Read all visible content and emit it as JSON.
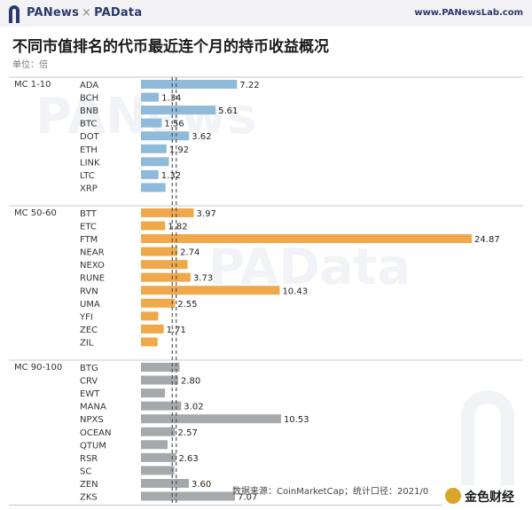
{
  "header": {
    "brand_left": "PANews",
    "brand_sep": "×",
    "brand_right": "PAData",
    "site": "www.PANewsLab.com"
  },
  "title": "不同市值排名的代币最近连个月的持币收益概况",
  "unit": "单位：倍",
  "footer": "数据来源：CoinMarketCap；统计口径：2021/0",
  "watermarks": {
    "pa_news": "PANews",
    "pa_data": "PAData",
    "corner": "金色财经"
  },
  "colors": {
    "group1": "#8fbad9",
    "group2": "#f0a94a",
    "group3": "#a6a9ab",
    "separator": "#c8c8c8"
  },
  "chart_data": {
    "type": "bar",
    "orientation": "horizontal",
    "title": "不同市值排名的代币最近连个月的持币收益概况",
    "unit": "单位：倍",
    "groups": [
      {
        "name": "MC 1-10",
        "color": "#8fbad9",
        "tokens": [
          {
            "name": "ADA",
            "value": 7.22,
            "label": "7.22"
          },
          {
            "name": "BCH",
            "value": 1.34,
            "label": "1.34"
          },
          {
            "name": "BNB",
            "value": 5.61,
            "label": "5.61"
          },
          {
            "name": "BTC",
            "value": 1.56,
            "label": "1.56"
          },
          {
            "name": "DOT",
            "value": 3.62,
            "label": "3.62"
          },
          {
            "name": "ETH",
            "value": 1.92,
            "label": "1.92"
          },
          {
            "name": "LINK",
            "value": 2.1,
            "label": ""
          },
          {
            "name": "LTC",
            "value": 1.32,
            "label": "1.32"
          },
          {
            "name": "XRP",
            "value": 1.85,
            "label": ""
          }
        ]
      },
      {
        "name": "MC 50-60",
        "color": "#f0a94a",
        "tokens": [
          {
            "name": "BTT",
            "value": 3.97,
            "label": "3.97"
          },
          {
            "name": "ETC",
            "value": 1.82,
            "label": "1.82"
          },
          {
            "name": "FTM",
            "value": 24.87,
            "label": "24.87"
          },
          {
            "name": "NEAR",
            "value": 2.74,
            "label": "2.74"
          },
          {
            "name": "NEXO",
            "value": 3.5,
            "label": ""
          },
          {
            "name": "RUNE",
            "value": 3.73,
            "label": "3.73"
          },
          {
            "name": "RVN",
            "value": 10.43,
            "label": "10.43"
          },
          {
            "name": "UMA",
            "value": 2.55,
            "label": "2.55"
          },
          {
            "name": "YFI",
            "value": 1.3,
            "label": ""
          },
          {
            "name": "ZEC",
            "value": 1.71,
            "label": "1.71"
          },
          {
            "name": "ZIL",
            "value": 1.25,
            "label": ""
          }
        ]
      },
      {
        "name": "MC 90-100",
        "color": "#a6a9ab",
        "tokens": [
          {
            "name": "BTG",
            "value": 2.9,
            "label": ""
          },
          {
            "name": "CRV",
            "value": 2.8,
            "label": "2.80"
          },
          {
            "name": "EWT",
            "value": 1.8,
            "label": ""
          },
          {
            "name": "MANA",
            "value": 3.02,
            "label": "3.02"
          },
          {
            "name": "NPXS",
            "value": 10.53,
            "label": "10.53"
          },
          {
            "name": "OCEAN",
            "value": 2.57,
            "label": "2.57"
          },
          {
            "name": "QTUM",
            "value": 2.0,
            "label": ""
          },
          {
            "name": "RSR",
            "value": 2.63,
            "label": "2.63"
          },
          {
            "name": "SC",
            "value": 2.5,
            "label": ""
          },
          {
            "name": "ZEN",
            "value": 3.6,
            "label": "3.60"
          },
          {
            "name": "ZKS",
            "value": 7.07,
            "label": "7.07"
          }
        ]
      }
    ],
    "reference_lines": [
      2.35,
      2.65
    ],
    "xlim": [
      0,
      25
    ],
    "grid": false,
    "legend": "none"
  }
}
